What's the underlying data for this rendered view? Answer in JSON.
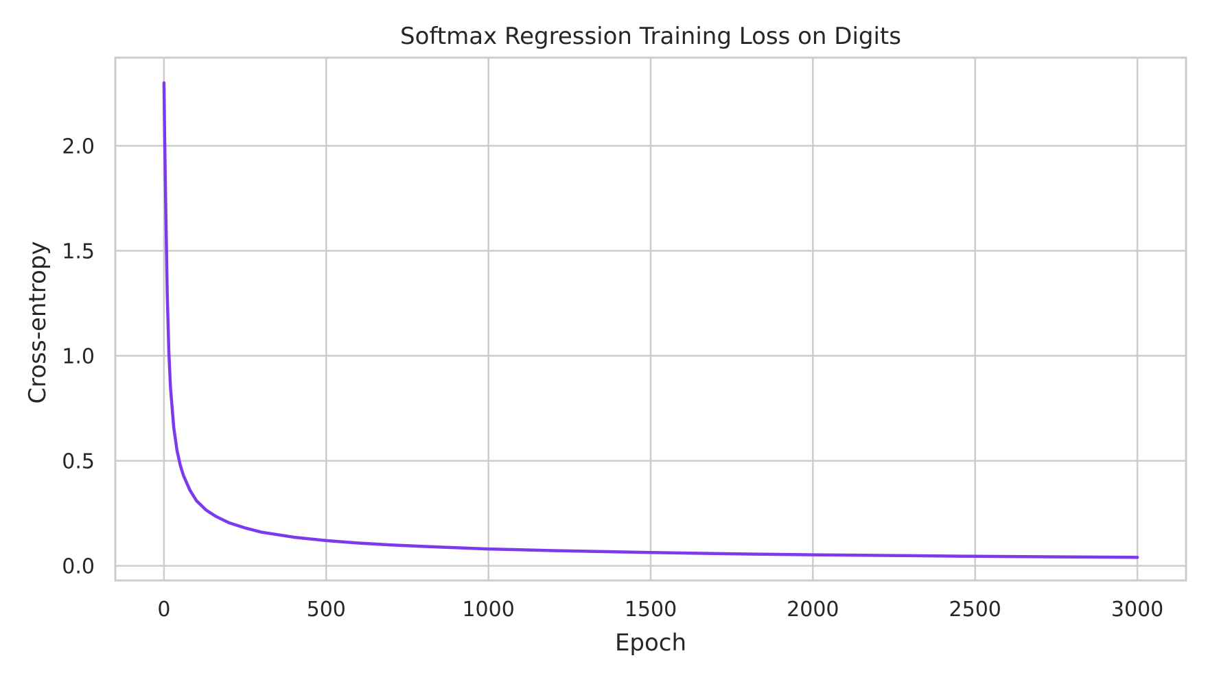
{
  "chart_data": {
    "type": "line",
    "title": "Softmax Regression Training Loss on Digits",
    "xlabel": "Epoch",
    "ylabel": "Cross-entropy",
    "xlim": [
      -150,
      3150
    ],
    "ylim": [
      -0.07,
      2.42
    ],
    "xticks": [
      0,
      500,
      1000,
      1500,
      2000,
      2500,
      3000
    ],
    "xtick_labels": [
      "0",
      "500",
      "1000",
      "1500",
      "2000",
      "2500",
      "3000"
    ],
    "yticks": [
      0.0,
      0.5,
      1.0,
      1.5,
      2.0
    ],
    "ytick_labels": [
      "0.0",
      "0.5",
      "1.0",
      "1.5",
      "2.0"
    ],
    "grid": true,
    "legend": null,
    "series": [
      {
        "name": "Training loss",
        "color": "#7c3aed",
        "x": [
          0,
          2,
          5,
          10,
          15,
          20,
          30,
          40,
          50,
          60,
          80,
          100,
          130,
          160,
          200,
          250,
          300,
          400,
          500,
          600,
          700,
          800,
          1000,
          1200,
          1500,
          1800,
          2000,
          2300,
          2500,
          2800,
          3000
        ],
        "values": [
          2.3,
          2.05,
          1.75,
          1.3,
          1.02,
          0.85,
          0.66,
          0.55,
          0.48,
          0.43,
          0.36,
          0.31,
          0.265,
          0.235,
          0.205,
          0.18,
          0.16,
          0.136,
          0.12,
          0.108,
          0.099,
          0.092,
          0.08,
          0.072,
          0.063,
          0.056,
          0.052,
          0.048,
          0.045,
          0.042,
          0.04
        ]
      }
    ]
  }
}
